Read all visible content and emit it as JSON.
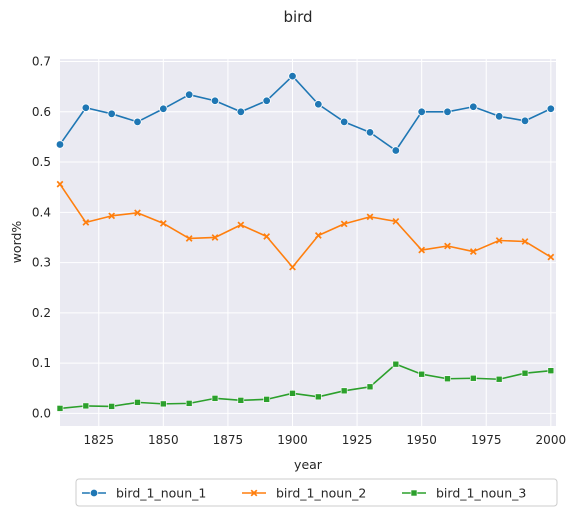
{
  "chart_data": {
    "type": "line",
    "title": "bird",
    "xlabel": "year",
    "ylabel": "word%",
    "xlim": [
      1810,
      2002
    ],
    "ylim": [
      -0.025,
      0.705
    ],
    "xticks": [
      1825,
      1850,
      1875,
      1900,
      1925,
      1950,
      1975,
      2000
    ],
    "yticks": [
      0.0,
      0.1,
      0.2,
      0.3,
      0.4,
      0.5,
      0.6,
      0.7
    ],
    "grid": true,
    "legend_position": "bottom-center",
    "x": [
      1810,
      1820,
      1830,
      1840,
      1850,
      1860,
      1870,
      1880,
      1890,
      1900,
      1910,
      1920,
      1930,
      1940,
      1950,
      1960,
      1970,
      1980,
      1990,
      2000
    ],
    "series": [
      {
        "name": "bird_1_noun_1",
        "color": "#1f77b4",
        "marker": "circle",
        "values": [
          0.535,
          0.608,
          0.596,
          0.58,
          0.606,
          0.634,
          0.622,
          0.6,
          0.622,
          0.671,
          0.615,
          0.58,
          0.559,
          0.523,
          0.6,
          0.6,
          0.61,
          0.591,
          0.582,
          0.606
        ]
      },
      {
        "name": "bird_1_noun_2",
        "color": "#ff7f0e",
        "marker": "x",
        "values": [
          0.456,
          0.38,
          0.393,
          0.399,
          0.378,
          0.348,
          0.35,
          0.375,
          0.352,
          0.291,
          0.354,
          0.377,
          0.391,
          0.382,
          0.325,
          0.333,
          0.322,
          0.344,
          0.342,
          0.311
        ]
      },
      {
        "name": "bird_1_noun_3",
        "color": "#2ca02c",
        "marker": "square",
        "values": [
          0.01,
          0.015,
          0.014,
          0.022,
          0.019,
          0.02,
          0.03,
          0.026,
          0.028,
          0.04,
          0.033,
          0.045,
          0.053,
          0.098,
          0.078,
          0.069,
          0.07,
          0.068,
          0.08,
          0.085
        ]
      }
    ]
  }
}
